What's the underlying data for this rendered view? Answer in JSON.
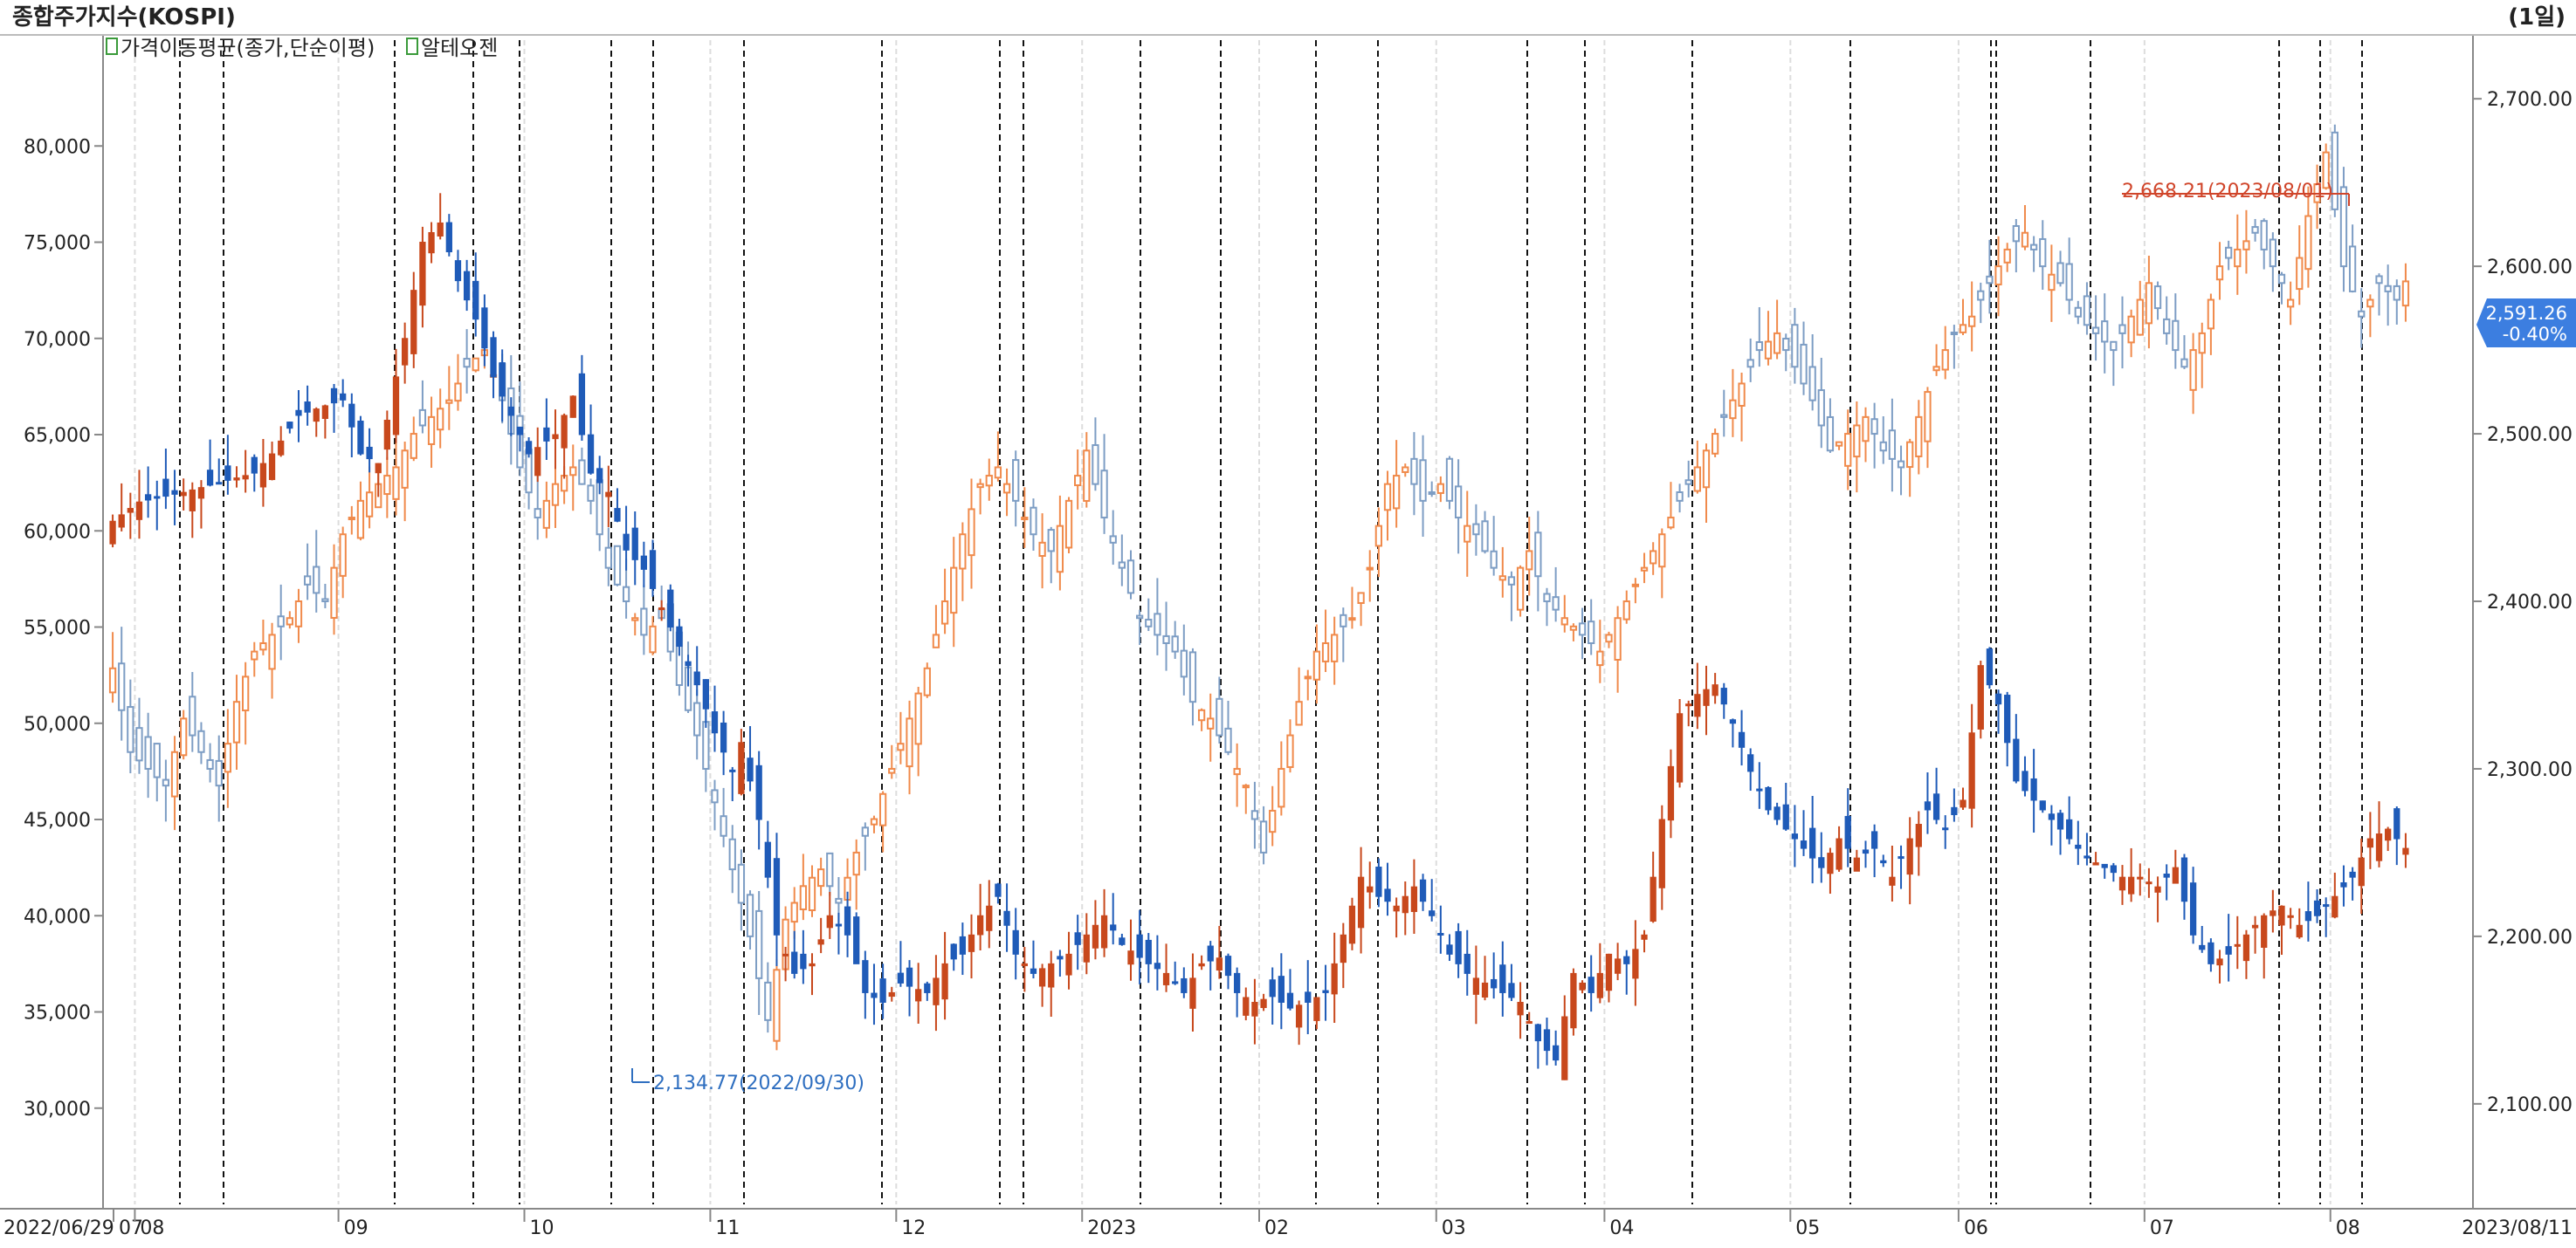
{
  "header": {
    "title": "종합주가지수(KOSPI)",
    "period": "(1일)"
  },
  "legend": [
    {
      "label": "가격이동평균(종가,단순이평)"
    },
    {
      "label": "알테오젠"
    }
  ],
  "colors": {
    "up": "#c8481c",
    "down": "#1f5bb8",
    "kospi_up": "#f08a4b",
    "kospi_down": "#7d9dc4",
    "hi_label": "#d0452a",
    "lo_label": "#2f6fc0",
    "badge": "#3c7ee0",
    "grid": "#cccccc",
    "axis_text": "#222222"
  },
  "annotations": {
    "high": "2,668.21(2023/08/01)",
    "low": "2,134.77(2022/09/30)",
    "current_price": "2,591.26",
    "current_change": "-0.40%"
  },
  "chart_data": {
    "type": "candlestick",
    "title": "종합주가지수(KOSPI)",
    "date_range": [
      "2022/06/29",
      "2023/08/11"
    ],
    "x_start_label": "2022/06/29",
    "x_end_label": "2023/08/11",
    "x_ticks": [
      "07",
      "08",
      "09",
      "10",
      "11",
      "12",
      "2023",
      "02",
      "03",
      "04",
      "05",
      "06",
      "07",
      "08"
    ],
    "left_axis": {
      "ticks": [
        "80,000",
        "75,000",
        "70,000",
        "65,000",
        "60,000",
        "55,000",
        "50,000",
        "45,000",
        "40,000",
        "35,000",
        "30,000"
      ],
      "range": [
        25000,
        85500
      ]
    },
    "right_axis": {
      "ticks": [
        "2,700.00",
        "2,600.00",
        "2,500.00",
        "2,400.00",
        "2,300.00",
        "2,200.00",
        "2,100.00"
      ],
      "range": [
        2040,
        2735
      ]
    },
    "series": [
      {
        "name": "알테오젠",
        "axis": "left",
        "points": [
          [
            0,
            60500
          ],
          [
            3,
            61500
          ],
          [
            8,
            62000
          ],
          [
            12,
            62500
          ],
          [
            16,
            63000
          ],
          [
            18,
            64000
          ],
          [
            21,
            66000
          ],
          [
            24,
            66500
          ],
          [
            26,
            66800
          ],
          [
            28,
            64000
          ],
          [
            30,
            63500
          ],
          [
            32,
            68000
          ],
          [
            33,
            70000
          ],
          [
            35,
            75000
          ],
          [
            37,
            76000
          ],
          [
            39,
            73000
          ],
          [
            41,
            71000
          ],
          [
            43,
            68000
          ],
          [
            45,
            66000
          ],
          [
            47,
            64000
          ],
          [
            50,
            65000
          ],
          [
            52,
            67000
          ],
          [
            54,
            63000
          ],
          [
            56,
            62000
          ],
          [
            58,
            59000
          ],
          [
            60,
            58000
          ],
          [
            62,
            56000
          ],
          [
            64,
            54000
          ],
          [
            66,
            52000
          ],
          [
            68,
            49500
          ],
          [
            70,
            47500
          ],
          [
            71,
            49000
          ],
          [
            73,
            45000
          ],
          [
            75,
            39000
          ],
          [
            77,
            37000
          ],
          [
            79,
            37500
          ],
          [
            81,
            40000
          ],
          [
            83,
            39000
          ],
          [
            85,
            36000
          ],
          [
            87,
            35500
          ],
          [
            89,
            36500
          ],
          [
            92,
            36000
          ],
          [
            94,
            37500
          ],
          [
            96,
            38000
          ],
          [
            98,
            40000
          ],
          [
            100,
            41000
          ],
          [
            102,
            38000
          ],
          [
            104,
            37000
          ],
          [
            106,
            37500
          ],
          [
            108,
            38000
          ],
          [
            110,
            39000
          ],
          [
            112,
            40000
          ],
          [
            114,
            38500
          ],
          [
            117,
            37500
          ],
          [
            119,
            37000
          ],
          [
            121,
            36000
          ],
          [
            123,
            37500
          ],
          [
            125,
            37800
          ],
          [
            127,
            36000
          ],
          [
            129,
            35500
          ],
          [
            131,
            35800
          ],
          [
            133,
            35200
          ],
          [
            135,
            35500
          ],
          [
            137,
            36000
          ],
          [
            139,
            39000
          ],
          [
            141,
            42000
          ],
          [
            143,
            41000
          ],
          [
            145,
            40500
          ],
          [
            147,
            41500
          ],
          [
            149,
            40000
          ],
          [
            151,
            38000
          ],
          [
            153,
            37000
          ],
          [
            155,
            36500
          ],
          [
            157,
            36000
          ],
          [
            159,
            35500
          ],
          [
            161,
            33500
          ],
          [
            163,
            32500
          ],
          [
            165,
            37000
          ],
          [
            167,
            36000
          ],
          [
            169,
            38000
          ],
          [
            171,
            37500
          ],
          [
            173,
            39000
          ],
          [
            175,
            45000
          ],
          [
            177,
            50500
          ],
          [
            179,
            51500
          ],
          [
            181,
            52000
          ],
          [
            183,
            50000
          ],
          [
            185,
            47500
          ],
          [
            187,
            45500
          ],
          [
            189,
            44500
          ],
          [
            191,
            43500
          ],
          [
            193,
            42500
          ],
          [
            195,
            44000
          ],
          [
            197,
            43000
          ],
          [
            199,
            43500
          ],
          [
            201,
            42000
          ],
          [
            203,
            44000
          ],
          [
            205,
            45500
          ],
          [
            207,
            44500
          ],
          [
            209,
            46000
          ],
          [
            211,
            53000
          ],
          [
            213,
            51000
          ],
          [
            215,
            47000
          ],
          [
            217,
            46000
          ],
          [
            219,
            45000
          ],
          [
            221,
            44000
          ],
          [
            223,
            43000
          ],
          [
            225,
            42500
          ],
          [
            227,
            42000
          ],
          [
            229,
            42000
          ],
          [
            231,
            41500
          ],
          [
            233,
            42500
          ],
          [
            235,
            39000
          ],
          [
            237,
            37500
          ],
          [
            239,
            38000
          ],
          [
            241,
            39000
          ],
          [
            243,
            40000
          ],
          [
            245,
            40500
          ],
          [
            247,
            39500
          ],
          [
            249,
            40000
          ],
          [
            251,
            41000
          ],
          [
            253,
            42000
          ],
          [
            255,
            44000
          ],
          [
            257,
            44500
          ],
          [
            259,
            43500
          ]
        ]
      },
      {
        "name": "",
        "axis": "right",
        "points": [
          [
            0,
            2360
          ],
          [
            2,
            2310
          ],
          [
            4,
            2300
          ],
          [
            6,
            2290
          ],
          [
            8,
            2330
          ],
          [
            10,
            2310
          ],
          [
            12,
            2290
          ],
          [
            14,
            2340
          ],
          [
            16,
            2370
          ],
          [
            18,
            2380
          ],
          [
            20,
            2390
          ],
          [
            22,
            2410
          ],
          [
            24,
            2400
          ],
          [
            26,
            2440
          ],
          [
            28,
            2460
          ],
          [
            30,
            2470
          ],
          [
            32,
            2480
          ],
          [
            34,
            2500
          ],
          [
            36,
            2510
          ],
          [
            38,
            2520
          ],
          [
            40,
            2540
          ],
          [
            42,
            2550
          ],
          [
            44,
            2520
          ],
          [
            46,
            2480
          ],
          [
            48,
            2450
          ],
          [
            50,
            2470
          ],
          [
            52,
            2480
          ],
          [
            54,
            2460
          ],
          [
            56,
            2420
          ],
          [
            58,
            2400
          ],
          [
            60,
            2380
          ],
          [
            62,
            2390
          ],
          [
            64,
            2350
          ],
          [
            66,
            2320
          ],
          [
            68,
            2280
          ],
          [
            70,
            2240
          ],
          [
            72,
            2200
          ],
          [
            74,
            2150
          ],
          [
            76,
            2210
          ],
          [
            78,
            2230
          ],
          [
            80,
            2240
          ],
          [
            82,
            2220
          ],
          [
            84,
            2250
          ],
          [
            86,
            2270
          ],
          [
            88,
            2300
          ],
          [
            90,
            2330
          ],
          [
            92,
            2360
          ],
          [
            94,
            2400
          ],
          [
            96,
            2440
          ],
          [
            98,
            2470
          ],
          [
            100,
            2480
          ],
          [
            102,
            2460
          ],
          [
            104,
            2440
          ],
          [
            106,
            2430
          ],
          [
            108,
            2460
          ],
          [
            110,
            2490
          ],
          [
            112,
            2450
          ],
          [
            114,
            2420
          ],
          [
            116,
            2390
          ],
          [
            118,
            2380
          ],
          [
            120,
            2370
          ],
          [
            122,
            2340
          ],
          [
            124,
            2330
          ],
          [
            126,
            2310
          ],
          [
            128,
            2290
          ],
          [
            130,
            2250
          ],
          [
            132,
            2300
          ],
          [
            134,
            2340
          ],
          [
            136,
            2370
          ],
          [
            138,
            2380
          ],
          [
            140,
            2390
          ],
          [
            142,
            2420
          ],
          [
            144,
            2470
          ],
          [
            146,
            2480
          ],
          [
            148,
            2460
          ],
          [
            150,
            2470
          ],
          [
            152,
            2450
          ],
          [
            154,
            2440
          ],
          [
            156,
            2420
          ],
          [
            158,
            2410
          ],
          [
            160,
            2430
          ],
          [
            162,
            2400
          ],
          [
            164,
            2390
          ],
          [
            166,
            2380
          ],
          [
            168,
            2370
          ],
          [
            170,
            2390
          ],
          [
            172,
            2410
          ],
          [
            174,
            2430
          ],
          [
            176,
            2450
          ],
          [
            178,
            2470
          ],
          [
            180,
            2490
          ],
          [
            182,
            2510
          ],
          [
            184,
            2530
          ],
          [
            186,
            2550
          ],
          [
            188,
            2560
          ],
          [
            190,
            2540
          ],
          [
            192,
            2520
          ],
          [
            194,
            2490
          ],
          [
            196,
            2500
          ],
          [
            198,
            2510
          ],
          [
            200,
            2490
          ],
          [
            202,
            2480
          ],
          [
            204,
            2510
          ],
          [
            206,
            2540
          ],
          [
            208,
            2560
          ],
          [
            210,
            2570
          ],
          [
            212,
            2590
          ],
          [
            214,
            2610
          ],
          [
            216,
            2620
          ],
          [
            218,
            2600
          ],
          [
            220,
            2590
          ],
          [
            222,
            2570
          ],
          [
            224,
            2560
          ],
          [
            226,
            2550
          ],
          [
            228,
            2570
          ],
          [
            230,
            2590
          ],
          [
            232,
            2560
          ],
          [
            234,
            2540
          ],
          [
            236,
            2560
          ],
          [
            238,
            2600
          ],
          [
            240,
            2610
          ],
          [
            242,
            2620
          ],
          [
            244,
            2600
          ],
          [
            246,
            2580
          ],
          [
            248,
            2630
          ],
          [
            250,
            2668
          ],
          [
            252,
            2600
          ],
          [
            254,
            2570
          ],
          [
            256,
            2590
          ],
          [
            258,
            2580
          ],
          [
            259,
            2591
          ]
        ]
      }
    ]
  }
}
